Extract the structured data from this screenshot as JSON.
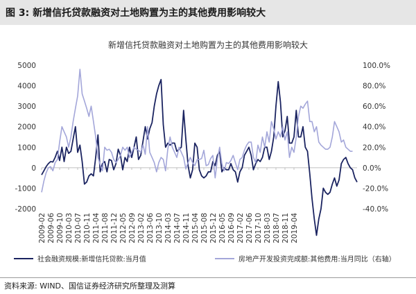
{
  "figure": {
    "label": "图 3:",
    "title": "新增信托贷款融资对土地购置为主的其他费用影响较大",
    "source": "资料来源: WIND、国信证券经济研究所整理及测算"
  },
  "colors": {
    "series1": "#1a2360",
    "series2": "#a3a6d9",
    "header_bg": "#e6e6e6",
    "axis": "#bfbfbf"
  },
  "chart_data": {
    "type": "line",
    "title": "新增信托贷款融资对土地购置为主的其他费用影响较大",
    "xlabels": [
      "2009-02",
      "2009-06",
      "2009-10",
      "2010-03",
      "2010-07",
      "2010-11",
      "2011-04",
      "2011-08",
      "2011-12",
      "2012-05",
      "2012-09",
      "2013-02",
      "2013-06",
      "2013-10",
      "2014-03",
      "2014-07",
      "2014-11",
      "2015-04",
      "2015-08",
      "2015-12",
      "2016-05",
      "2016-09",
      "2017-02",
      "2017-06",
      "2017-10",
      "2018-03",
      "2018-07",
      "2018-11",
      "2019-04"
    ],
    "x_start": "2009-02",
    "y_left": {
      "min": -2000,
      "max": 5000,
      "step": 1000,
      "ticks": [
        "-2000",
        "-1000",
        "0",
        "1000",
        "2000",
        "3000",
        "4000",
        "5000"
      ]
    },
    "y_right": {
      "min": -40,
      "max": 100,
      "step": 20,
      "unit": "%",
      "ticks": [
        "-40.0%",
        "-20.0%",
        "0.0%",
        "20.0%",
        "40.0%",
        "60.0%",
        "80.0%",
        "100.0%"
      ]
    },
    "series": [
      {
        "name": "社会融资规模:新增信托贷款:当月值",
        "axis": "left",
        "color": "#1a2360",
        "values": [
          -350,
          -150,
          50,
          200,
          300,
          280,
          500,
          800,
          350,
          1000,
          300,
          1000,
          700,
          800,
          1400,
          2000,
          750,
          1100,
          300,
          -800,
          -700,
          -400,
          -300,
          -400,
          500,
          1600,
          -200,
          200,
          300,
          -200,
          400,
          350,
          -100,
          200,
          900,
          600,
          -100,
          500,
          300,
          1000,
          500,
          1000,
          1500,
          400,
          600,
          1300,
          2000,
          1400,
          1900,
          2200,
          3000,
          3600,
          4000,
          4300,
          2100,
          1000,
          1200,
          1100,
          1200,
          1200,
          800,
          900,
          1000,
          2800,
          1400,
          100,
          -500,
          -100,
          1200,
          1000,
          -100,
          -400,
          -500,
          -400,
          -200,
          -200,
          300,
          100,
          600,
          800,
          -200,
          0,
          -100,
          -100,
          200,
          -100,
          -200,
          -700,
          -200,
          0,
          600,
          800,
          1000,
          600,
          -100,
          200,
          400,
          300,
          500,
          1000,
          1000,
          400,
          800,
          1500,
          3000,
          4200,
          3200,
          1500,
          1800,
          2500,
          1200,
          1200,
          1500,
          2800,
          1500,
          1500,
          2000,
          1000,
          800,
          -300,
          -1500,
          -2500,
          -3300,
          -2500,
          -2000,
          -1000,
          -1200,
          -1300,
          -1200,
          -800,
          -500,
          -900,
          -600,
          200,
          400,
          500,
          200,
          0,
          -100,
          -500,
          -700
        ]
      },
      {
        "name": "房地产开发投资完成额:其他费用:当月同比（右轴）",
        "axis": "right",
        "color": "#a3a6d9",
        "values": [
          -24,
          -13,
          -5,
          0,
          1,
          -3,
          5,
          8,
          25,
          40,
          35,
          30,
          20,
          30,
          45,
          58,
          70,
          96,
          72,
          65,
          58,
          50,
          60,
          45,
          30,
          10,
          3,
          -3,
          20,
          17,
          18,
          15,
          8,
          5,
          8,
          12,
          20,
          17,
          20,
          10,
          15,
          20,
          18,
          17,
          15,
          22,
          13,
          40,
          15,
          10,
          5,
          -4,
          5,
          10,
          8,
          -3,
          18,
          30,
          20,
          15,
          10,
          20,
          15,
          10,
          -1,
          5,
          10,
          5,
          2,
          8,
          8,
          9,
          17,
          2,
          3,
          9,
          12,
          -10,
          8,
          20,
          4,
          -3,
          5,
          4,
          7,
          12,
          5,
          -2,
          8,
          10,
          17,
          22,
          25,
          25,
          10,
          5,
          22,
          15,
          30,
          20,
          35,
          25,
          45,
          38,
          28,
          35,
          30,
          40,
          27,
          35,
          10,
          20,
          15,
          30,
          50,
          60,
          58,
          62,
          65,
          45,
          45,
          35,
          40,
          25,
          22,
          20,
          18,
          18,
          20,
          30,
          45,
          40,
          35,
          25,
          27,
          20,
          18,
          16,
          16
        ]
      }
    ],
    "legend_position": "bottom",
    "grid": false
  }
}
